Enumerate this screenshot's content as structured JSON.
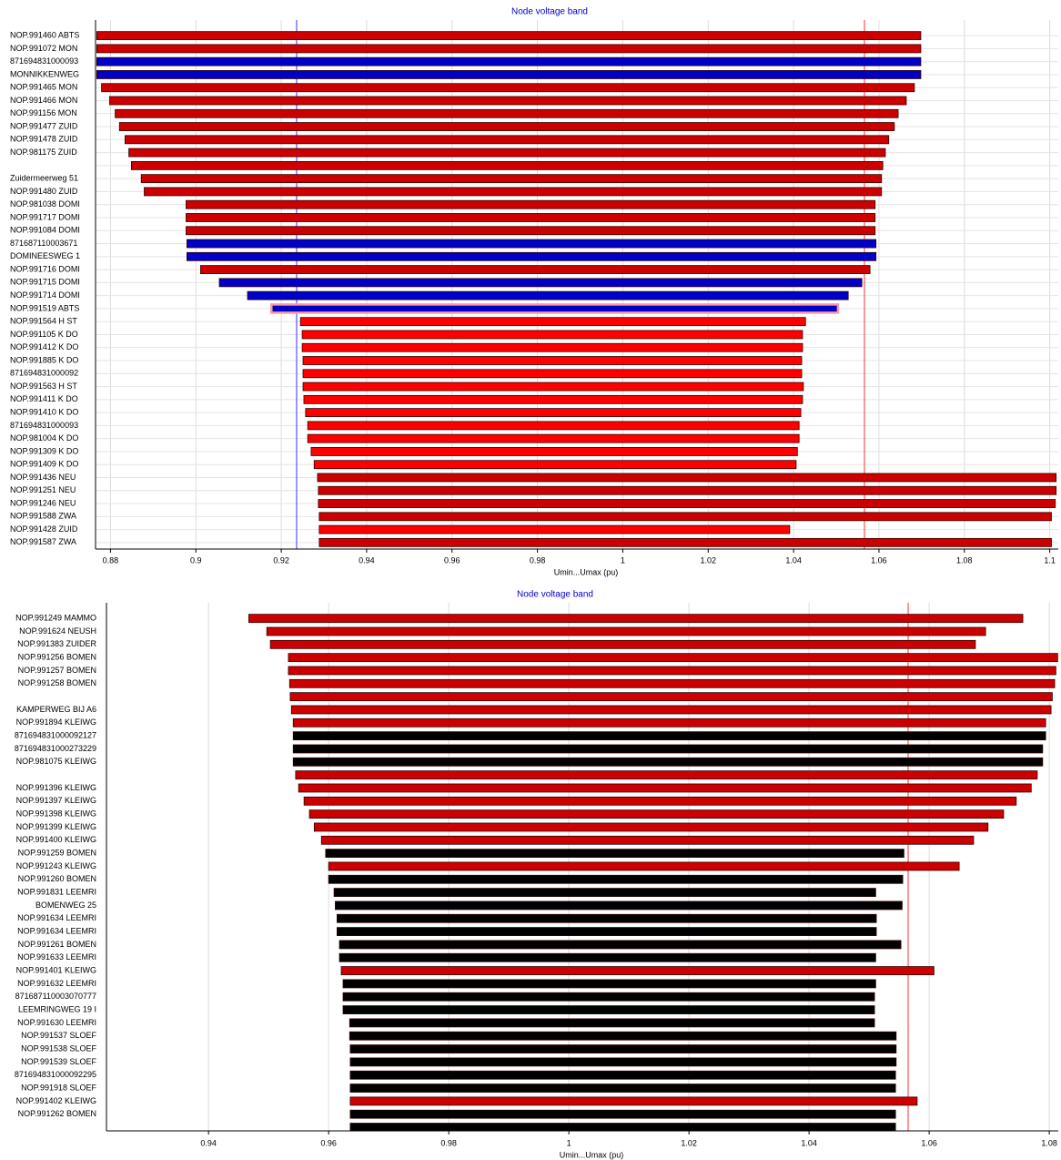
{
  "chart_data": [
    {
      "type": "range_bar",
      "title": "Node voltage band",
      "xlabel": "Umin...Umax (pu)",
      "categories": [
        "NOP.991460 ABTS",
        "NOP.991072 MON",
        "871694831000093",
        "MONNIKKENWEG",
        "NOP.991465 MON",
        "NOP.991466 MON",
        "NOP.991156 MON",
        "NOP.991477 ZUID",
        "NOP.991478 ZUID",
        "NOP.981175 ZUID",
        null,
        "Zuidermeerweg 51",
        "NOP.991480 ZUID",
        "NOP.981038 DOMI",
        "NOP.991717 DOMI",
        "NOP.991084 DOMI",
        "871687110003671",
        "DOMINEESWEG 1",
        "NOP.991716 DOMI",
        "NOP.991715 DOMI",
        "NOP.991714 DOMI",
        "NOP.991519 ABTS",
        "NOP.991564 H ST",
        "NOP.991105 K DO",
        "NOP.991412 K DO",
        "NOP.991885 K DO",
        "871694831000092",
        "NOP.991563 H ST",
        "NOP.991411 K DO",
        "NOP.991410 K DO",
        "871694831000093",
        "NOP.981004 K DO",
        "NOP.991309 K DO",
        "NOP.991409 K DO",
        "NOP.991436 NEU",
        "NOP.991251 NEU",
        "NOP.991246 NEU",
        "NOP.991588 ZWA",
        "NOP.991428 ZUID",
        "NOP.991587 ZWA"
      ],
      "low": [
        0.8768,
        0.8768,
        0.8768,
        0.8768,
        0.8779,
        0.8798,
        0.8811,
        0.8821,
        0.8834,
        0.8843,
        0.8849,
        0.8872,
        0.8879,
        0.8977,
        0.8977,
        0.8977,
        0.8979,
        0.8979,
        0.9011,
        0.9055,
        0.9121,
        0.9177,
        0.9245,
        0.9249,
        0.9249,
        0.9251,
        0.9251,
        0.9251,
        0.9253,
        0.9257,
        0.9262,
        0.9262,
        0.927,
        0.9277,
        0.9285,
        0.9287,
        0.9287,
        0.9289,
        0.9289,
        0.9289
      ],
      "high": [
        1.0698,
        1.0698,
        1.0698,
        1.0698,
        1.0683,
        1.0664,
        1.0645,
        1.0636,
        1.0623,
        1.0615,
        1.0609,
        1.0606,
        1.0606,
        1.0591,
        1.0591,
        1.0591,
        1.0593,
        1.0593,
        1.0579,
        1.056,
        1.0528,
        1.0504,
        1.0428,
        1.0421,
        1.0421,
        1.0419,
        1.0419,
        1.0423,
        1.0421,
        1.0417,
        1.0413,
        1.0413,
        1.0409,
        1.0406,
        1.1015,
        1.1015,
        1.1013,
        1.1004,
        1.0391,
        1.1004
      ],
      "colors": [
        "#cc0000",
        "#cc0000",
        "#0000c8",
        "#0000c8",
        "#cc0000",
        "#cc0000",
        "#cc0000",
        "#cc0000",
        "#cc0000",
        "#cc0000",
        "#cc0000",
        "#cc0000",
        "#cc0000",
        "#cc0000",
        "#cc0000",
        "#cc0000",
        "#0000c8",
        "#0000c8",
        "#cc0000",
        "#0000c8",
        "#0000c8",
        "#0000c8",
        "#ff0000",
        "#ff0000",
        "#ff0000",
        "#ff0000",
        "#ff0000",
        "#ff0000",
        "#ff0000",
        "#ff0000",
        "#ff0000",
        "#ff0000",
        "#ff0000",
        "#ff0000",
        "#cc0000",
        "#cc0000",
        "#cc0000",
        "#cc0000",
        "#ff0000",
        "#cc0000"
      ],
      "selected": 21,
      "reference_lines": [
        {
          "value": 0.9236,
          "color": "#3333ff"
        },
        {
          "value": 1.0566,
          "color": "#ff3333"
        }
      ],
      "xlim": [
        0.8765,
        1.102
      ],
      "xticks": [
        0.88,
        0.9,
        0.92,
        0.94,
        0.96,
        0.98,
        1,
        1.02,
        1.04,
        1.06,
        1.08,
        1.1
      ],
      "grid": true,
      "row_grid": true
    },
    {
      "type": "range_bar",
      "title": "Node voltage band",
      "xlabel": "Umin...Umax (pu)",
      "categories": [
        "NOP.991249 MAMMO",
        "NOP.991624 NEUSH",
        "NOP.991383 ZUIDER",
        "NOP.991256 BOMEN",
        "NOP.991257 BOMEN",
        "NOP.991258 BOMEN",
        null,
        "KAMPERWEG BIJ A6",
        "NOP.991894 KLEIWG",
        "871694831000092127",
        "871694831000273229",
        "NOP.981075 KLEIWG",
        null,
        "NOP.991396 KLEIWG",
        "NOP.991397 KLEIWG",
        "NOP.991398 KLEIWG",
        "NOP.991399 KLEIWG",
        "NOP.991400 KLEIWG",
        "NOP.991259 BOMEN",
        "NOP.991243 KLEIWG",
        "NOP.991260 BOMEN",
        "NOP.991831 LEEMRI",
        "BOMENWEG 25",
        "NOP.991634 LEEMRI",
        "NOP.991634 LEEMRI",
        "NOP.991261 BOMEN",
        "NOP.991633 LEEMRI",
        "NOP.991401 KLEIWG",
        "NOP.991632 LEEMRI",
        "871687110003070777",
        "LEEMRINGWEG 19 I",
        "NOP.991630 LEEMRI",
        "NOP.991537 SLOEF",
        "NOP.991538 SLOEF",
        "NOP.991539 SLOEF",
        "871694831000092295",
        "NOP.991918 SLOEF",
        "NOP.991402 KLEIWG",
        "NOP.991262 BOMEN",
        null
      ],
      "low": [
        0.9467,
        0.9497,
        0.9503,
        0.9533,
        0.9533,
        0.9535,
        0.9536,
        0.9538,
        0.9541,
        0.9541,
        0.9541,
        0.9541,
        0.9545,
        0.955,
        0.9559,
        0.9568,
        0.9576,
        0.9588,
        0.9595,
        0.96,
        0.96,
        0.9609,
        0.9611,
        0.9614,
        0.9614,
        0.9618,
        0.9618,
        0.9621,
        0.9624,
        0.9624,
        0.9624,
        0.9635,
        0.9635,
        0.9636,
        0.9636,
        0.9636,
        0.9636,
        0.9636,
        0.9636,
        0.9636
      ],
      "high": [
        1.0756,
        1.0694,
        1.0677,
        1.0814,
        1.0811,
        1.0809,
        1.0805,
        1.0803,
        1.0794,
        1.0794,
        1.0789,
        1.0789,
        1.078,
        1.077,
        1.0745,
        1.0724,
        1.0698,
        1.0674,
        1.0558,
        1.065,
        1.0556,
        1.0511,
        1.0555,
        1.0512,
        1.0512,
        1.0553,
        1.0511,
        1.0608,
        1.0511,
        1.0509,
        1.0509,
        1.0509,
        1.0545,
        1.0545,
        1.0545,
        1.0544,
        1.0544,
        1.058,
        1.0544,
        1.0544
      ],
      "colors": [
        "#cc0000",
        "#cc0000",
        "#cc0000",
        "#cc0000",
        "#cc0000",
        "#cc0000",
        "#cc0000",
        "#cc0000",
        "#cc0000",
        "#000000",
        "#000000",
        "#000000",
        "#cc0000",
        "#cc0000",
        "#cc0000",
        "#cc0000",
        "#cc0000",
        "#cc0000",
        "#000000",
        "#cc0000",
        "#000000",
        "#000000",
        "#000000",
        "#000000",
        "#000000",
        "#000000",
        "#000000",
        "#cc0000",
        "#000000",
        "#000000",
        "#000000",
        "#000000",
        "#000000",
        "#000000",
        "#000000",
        "#000000",
        "#000000",
        "#cc0000",
        "#000000",
        "#000000"
      ],
      "reference_lines": [
        {
          "value": 1.0565,
          "color": "#ff3333"
        }
      ],
      "xlim": [
        0.923,
        1.0815
      ],
      "xticks": [
        0.94,
        0.96,
        0.98,
        1,
        1.02,
        1.04,
        1.06,
        1.08
      ],
      "grid": true,
      "row_grid": false
    }
  ]
}
